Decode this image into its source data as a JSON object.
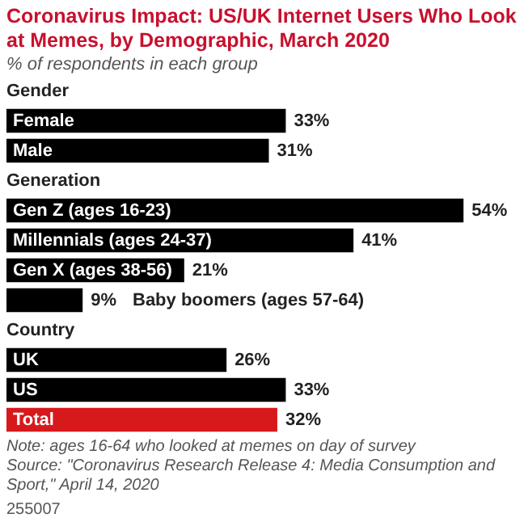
{
  "chart_data": {
    "type": "bar",
    "orientation": "horizontal",
    "title": "Coronavirus Impact: US/UK Internet Users Who Look at Memes, by Demographic, March 2020",
    "subtitle": "% of respondents in each group",
    "categories": [
      "Gender",
      "Female",
      "Male",
      "Generation",
      "Gen Z (ages 16-23)",
      "Millennials (ages 24-37)",
      "Gen X (ages 38-56)",
      "Baby boomers (ages 57-64)",
      "Country",
      "UK",
      "US",
      "Total"
    ],
    "values": [
      null,
      33,
      31,
      null,
      54,
      41,
      21,
      9,
      null,
      26,
      33,
      32
    ],
    "colors": [
      "#000000",
      "#000000",
      "#000000",
      "#000000",
      "#000000",
      "#000000",
      "#000000",
      "#000000",
      "#000000",
      "#000000",
      "#000000",
      "#d7191c"
    ],
    "value_labels": [
      null,
      "33%",
      "31%",
      null,
      "54%",
      "41%",
      "21%",
      "9%",
      null,
      "26%",
      "33%",
      "32%"
    ],
    "annotations": [
      "Note: ages 16-64 who looked at memes on day of survey",
      "Source: \"Coronavirus Research Release 4: Media Consumption and Sport,\" April 14, 2020",
      "255007"
    ]
  }
}
